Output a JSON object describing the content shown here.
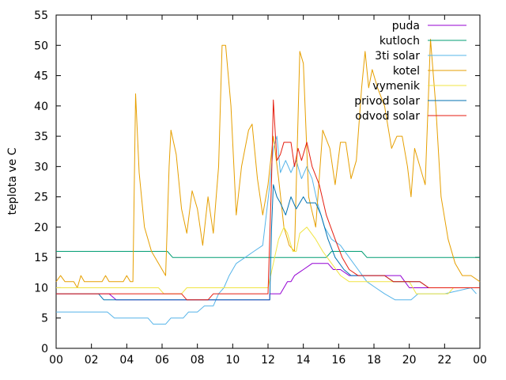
{
  "chart_data": {
    "type": "line",
    "title": "",
    "xlabel": "",
    "ylabel": "teplota ve C",
    "xlim": [
      0,
      24
    ],
    "ylim": [
      0,
      55
    ],
    "x_tick_labels": [
      "00",
      "02",
      "04",
      "06",
      "08",
      "10",
      "12",
      "14",
      "16",
      "18",
      "20",
      "22",
      "00"
    ],
    "y_tick_labels": [
      "0",
      "5",
      "10",
      "15",
      "20",
      "25",
      "30",
      "35",
      "40",
      "45",
      "50",
      "55"
    ],
    "grid": false,
    "legend": "top-right",
    "series": [
      {
        "name": "puda",
        "color": "#9400d3",
        "points": [
          [
            0,
            9
          ],
          [
            3.0,
            9
          ],
          [
            3.4,
            8
          ],
          [
            12.1,
            8
          ],
          [
            12.1,
            9
          ],
          [
            12.7,
            9
          ],
          [
            13.1,
            11
          ],
          [
            13.3,
            11
          ],
          [
            13.5,
            12
          ],
          [
            14.0,
            13
          ],
          [
            14.5,
            14
          ],
          [
            15.4,
            14
          ],
          [
            15.7,
            13
          ],
          [
            16.1,
            13
          ],
          [
            16.6,
            12
          ],
          [
            18.0,
            12
          ],
          [
            19.5,
            12
          ],
          [
            20,
            10
          ],
          [
            24,
            10
          ]
        ]
      },
      {
        "name": "kutloch",
        "color": "#009e73",
        "points": [
          [
            0,
            16
          ],
          [
            6.3,
            16
          ],
          [
            6.6,
            15
          ],
          [
            15.3,
            15
          ],
          [
            15.6,
            16
          ],
          [
            17.3,
            16
          ],
          [
            17.6,
            15
          ],
          [
            24,
            15
          ]
        ]
      },
      {
        "name": "3ti solar",
        "color": "#56b4e9",
        "points": [
          [
            0,
            6
          ],
          [
            2.9,
            6
          ],
          [
            3.3,
            5
          ],
          [
            5.2,
            5
          ],
          [
            5.5,
            4
          ],
          [
            6.2,
            4
          ],
          [
            6.5,
            5
          ],
          [
            7.2,
            5
          ],
          [
            7.5,
            6
          ],
          [
            8.0,
            6
          ],
          [
            8.4,
            7
          ],
          [
            8.9,
            7
          ],
          [
            9.2,
            9
          ],
          [
            9.5,
            10
          ],
          [
            9.8,
            12
          ],
          [
            10.2,
            14
          ],
          [
            10.7,
            15
          ],
          [
            11.2,
            16
          ],
          [
            11.7,
            17
          ],
          [
            11.9,
            22
          ],
          [
            12.1,
            27
          ],
          [
            12.3,
            33
          ],
          [
            12.5,
            35
          ],
          [
            12.7,
            29
          ],
          [
            13.0,
            31
          ],
          [
            13.3,
            29
          ],
          [
            13.6,
            31
          ],
          [
            13.9,
            28
          ],
          [
            14.2,
            30
          ],
          [
            14.5,
            28
          ],
          [
            14.8,
            24
          ],
          [
            15.2,
            20
          ],
          [
            15.6,
            18
          ],
          [
            16.1,
            17
          ],
          [
            16.6,
            15
          ],
          [
            17.1,
            13
          ],
          [
            17.6,
            11
          ],
          [
            18.1,
            10
          ],
          [
            18.6,
            9
          ],
          [
            19.2,
            8
          ],
          [
            20.1,
            8
          ],
          [
            20.5,
            9
          ],
          [
            21.2,
            9
          ],
          [
            22.0,
            9
          ],
          [
            23.5,
            10
          ],
          [
            23.8,
            9
          ]
        ]
      },
      {
        "name": "kotel",
        "color": "#e69f00",
        "points": [
          [
            0,
            11
          ],
          [
            0.25,
            12
          ],
          [
            0.5,
            11
          ],
          [
            1.0,
            11
          ],
          [
            1.2,
            10
          ],
          [
            1.4,
            12
          ],
          [
            1.6,
            11
          ],
          [
            2.6,
            11
          ],
          [
            2.8,
            12
          ],
          [
            3.0,
            11
          ],
          [
            3.8,
            11
          ],
          [
            4.0,
            12
          ],
          [
            4.2,
            11
          ],
          [
            4.35,
            11
          ],
          [
            4.5,
            42
          ],
          [
            4.7,
            29
          ],
          [
            5.0,
            20
          ],
          [
            5.4,
            16
          ],
          [
            5.8,
            14
          ],
          [
            6.2,
            12
          ],
          [
            6.4,
            30
          ],
          [
            6.5,
            36
          ],
          [
            6.8,
            32
          ],
          [
            7.1,
            23
          ],
          [
            7.4,
            19
          ],
          [
            7.7,
            26
          ],
          [
            8.0,
            23
          ],
          [
            8.3,
            17
          ],
          [
            8.6,
            25
          ],
          [
            8.9,
            19
          ],
          [
            9.2,
            30
          ],
          [
            9.4,
            50
          ],
          [
            9.6,
            50
          ],
          [
            9.9,
            40
          ],
          [
            10.2,
            22
          ],
          [
            10.5,
            30
          ],
          [
            10.9,
            36
          ],
          [
            11.1,
            37
          ],
          [
            11.4,
            28
          ],
          [
            11.7,
            22
          ],
          [
            12.0,
            27
          ],
          [
            12.3,
            35
          ],
          [
            12.6,
            28
          ],
          [
            12.9,
            20
          ],
          [
            13.2,
            17
          ],
          [
            13.5,
            16
          ],
          [
            13.8,
            49
          ],
          [
            14.0,
            47
          ],
          [
            14.3,
            25
          ],
          [
            14.7,
            20
          ],
          [
            15.1,
            36
          ],
          [
            15.5,
            33
          ],
          [
            15.8,
            27
          ],
          [
            16.1,
            34
          ],
          [
            16.4,
            34
          ],
          [
            16.7,
            28
          ],
          [
            17.0,
            31
          ],
          [
            17.3,
            43
          ],
          [
            17.5,
            49
          ],
          [
            17.7,
            43
          ],
          [
            17.9,
            46
          ],
          [
            18.2,
            43
          ],
          [
            18.6,
            40
          ],
          [
            19.0,
            33
          ],
          [
            19.3,
            35
          ],
          [
            19.6,
            35
          ],
          [
            19.9,
            30
          ],
          [
            20.1,
            25
          ],
          [
            20.3,
            33
          ],
          [
            20.6,
            30
          ],
          [
            20.9,
            27
          ],
          [
            21.2,
            51
          ],
          [
            21.5,
            40
          ],
          [
            21.8,
            25
          ],
          [
            22.2,
            18
          ],
          [
            22.6,
            14
          ],
          [
            23.0,
            12
          ],
          [
            23.5,
            12
          ],
          [
            24,
            11
          ]
        ]
      },
      {
        "name": "vymenik",
        "color": "#f0e442",
        "points": [
          [
            0,
            10
          ],
          [
            5.8,
            10
          ],
          [
            6.1,
            9
          ],
          [
            7.1,
            9
          ],
          [
            7.4,
            10
          ],
          [
            12.0,
            10
          ],
          [
            12.3,
            14
          ],
          [
            12.6,
            18
          ],
          [
            12.9,
            20
          ],
          [
            13.1,
            19
          ],
          [
            13.4,
            16
          ],
          [
            13.6,
            16
          ],
          [
            13.8,
            19
          ],
          [
            14.2,
            20
          ],
          [
            14.7,
            18
          ],
          [
            15.1,
            16
          ],
          [
            15.6,
            14
          ],
          [
            16.1,
            12
          ],
          [
            16.6,
            11
          ],
          [
            17.0,
            11
          ],
          [
            20.0,
            11
          ],
          [
            20.4,
            9
          ],
          [
            22.2,
            9
          ],
          [
            22.5,
            10
          ],
          [
            24,
            10
          ]
        ]
      },
      {
        "name": "privod solar",
        "color": "#0072b2",
        "points": [
          [
            0,
            9
          ],
          [
            2.4,
            9
          ],
          [
            2.7,
            8
          ],
          [
            12.1,
            8
          ],
          [
            12.2,
            20
          ],
          [
            12.3,
            27
          ],
          [
            12.5,
            25
          ],
          [
            12.7,
            24
          ],
          [
            13.0,
            22
          ],
          [
            13.3,
            25
          ],
          [
            13.6,
            23
          ],
          [
            14.0,
            25
          ],
          [
            14.2,
            24
          ],
          [
            14.7,
            24
          ],
          [
            15.0,
            22
          ],
          [
            15.4,
            18
          ],
          [
            15.8,
            15
          ],
          [
            16.3,
            13
          ],
          [
            16.7,
            12
          ],
          [
            17.1,
            12
          ],
          [
            18.6,
            12
          ],
          [
            19.1,
            11
          ],
          [
            20.6,
            11
          ],
          [
            21.1,
            10
          ],
          [
            24,
            10
          ]
        ]
      },
      {
        "name": "odvod solar",
        "color": "#e51e10",
        "points": [
          [
            0,
            9
          ],
          [
            7.1,
            9
          ],
          [
            7.4,
            8
          ],
          [
            8.6,
            8
          ],
          [
            8.9,
            9
          ],
          [
            11.6,
            9
          ],
          [
            12.0,
            9
          ],
          [
            12.2,
            28
          ],
          [
            12.3,
            41
          ],
          [
            12.5,
            31
          ],
          [
            12.7,
            32
          ],
          [
            12.9,
            34
          ],
          [
            13.3,
            34
          ],
          [
            13.5,
            30
          ],
          [
            13.7,
            33
          ],
          [
            13.9,
            31
          ],
          [
            14.2,
            34
          ],
          [
            14.5,
            30
          ],
          [
            14.9,
            27
          ],
          [
            15.3,
            22
          ],
          [
            15.8,
            18
          ],
          [
            16.2,
            15
          ],
          [
            16.6,
            13
          ],
          [
            17.1,
            12
          ],
          [
            18.6,
            12
          ],
          [
            19.1,
            11
          ],
          [
            20.6,
            11
          ],
          [
            21.1,
            10
          ],
          [
            24,
            10
          ]
        ]
      }
    ]
  }
}
